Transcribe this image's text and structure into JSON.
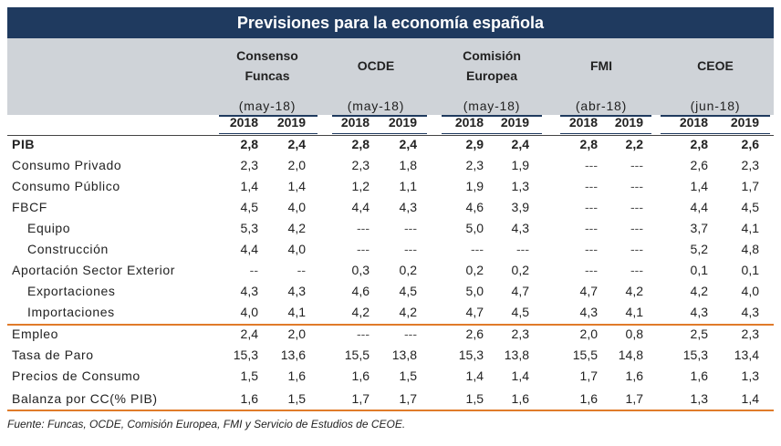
{
  "title": "Previsiones para la economía española",
  "sources": [
    {
      "name": "Consenso Funcas",
      "date": "(may-18)"
    },
    {
      "name": "OCDE",
      "date": "(may-18)"
    },
    {
      "name": "Comisión Europea",
      "date": "(may-18)"
    },
    {
      "name": "FMI",
      "date": "(abr-18)"
    },
    {
      "name": "CEOE",
      "date": "(jun-18)"
    }
  ],
  "years": [
    "2018",
    "2019"
  ],
  "rows": [
    {
      "label": "PIB",
      "bold": true,
      "values": [
        "2,8",
        "2,4",
        "2,8",
        "2,4",
        "2,9",
        "2,4",
        "2,8",
        "2,2",
        "2,8",
        "2,6"
      ]
    },
    {
      "label": "Consumo Privado",
      "values": [
        "2,3",
        "2,0",
        "2,3",
        "1,8",
        "2,3",
        "1,9",
        "---",
        "---",
        "2,6",
        "2,3"
      ]
    },
    {
      "label": "Consumo Público",
      "values": [
        "1,4",
        "1,4",
        "1,2",
        "1,1",
        "1,9",
        "1,3",
        "---",
        "---",
        "1,4",
        "1,7"
      ]
    },
    {
      "label": "FBCF",
      "values": [
        "4,5",
        "4,0",
        "4,4",
        "4,3",
        "4,6",
        "3,9",
        "---",
        "---",
        "4,4",
        "4,5"
      ]
    },
    {
      "label": "Equipo",
      "indent": true,
      "values": [
        "5,3",
        "4,2",
        "---",
        "---",
        "5,0",
        "4,3",
        "---",
        "---",
        "3,7",
        "4,1"
      ]
    },
    {
      "label": "Construcción",
      "indent": true,
      "values": [
        "4,4",
        "4,0",
        "---",
        "---",
        "---",
        "---",
        "---",
        "---",
        "5,2",
        "4,8"
      ]
    },
    {
      "label": "Aportación Sector Exterior",
      "values": [
        "--",
        "--",
        "0,3",
        "0,2",
        "0,2",
        "0,2",
        "---",
        "---",
        "0,1",
        "0,1"
      ]
    },
    {
      "label": "Exportaciones",
      "indent": true,
      "values": [
        "4,3",
        "4,3",
        "4,6",
        "4,5",
        "5,0",
        "4,7",
        "4,7",
        "4,2",
        "4,2",
        "4,0"
      ]
    },
    {
      "label": "Importaciones",
      "indent": true,
      "values": [
        "4,0",
        "4,1",
        "4,2",
        "4,2",
        "4,7",
        "4,5",
        "4,3",
        "4,1",
        "4,3",
        "4,3"
      ]
    },
    {
      "label": "Empleo",
      "values": [
        "2,4",
        "2,0",
        "---",
        "---",
        "2,6",
        "2,3",
        "2,0",
        "0,8",
        "2,5",
        "2,3"
      ]
    },
    {
      "label": "Tasa de Paro",
      "values": [
        "15,3",
        "13,6",
        "15,5",
        "13,8",
        "15,3",
        "13,8",
        "15,5",
        "14,8",
        "15,3",
        "13,4"
      ]
    },
    {
      "label": "Precios de Consumo",
      "values": [
        "1,5",
        "1,6",
        "1,6",
        "1,5",
        "1,4",
        "1,4",
        "1,7",
        "1,6",
        "1,6",
        "1,3"
      ]
    },
    {
      "label": "Balanza por CC(% PIB)",
      "values": [
        "1,6",
        "1,5",
        "1,7",
        "1,7",
        "1,5",
        "1,6",
        "1,6",
        "1,7",
        "1,3",
        "1,4"
      ]
    }
  ],
  "footer": "Fuente: Funcas, OCDE, Comisión Europea, FMI y Servicio de Estudios de CEOE.",
  "colors": {
    "title_bg": "#1f3a5f",
    "header_bg": "#cfd3d8",
    "separator": "#e07b2a"
  }
}
